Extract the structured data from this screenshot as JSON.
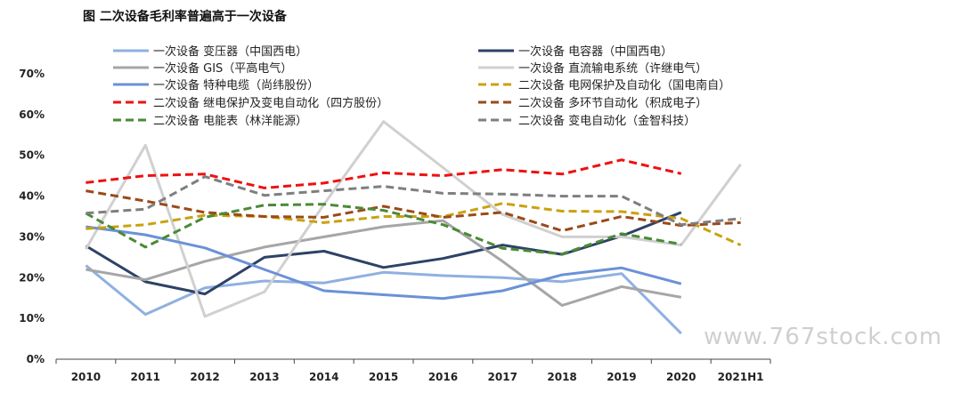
{
  "chart_data": {
    "type": "line",
    "title": "图  二次设备毛利率普遍高于一次设备",
    "x": [
      "2010",
      "2011",
      "2012",
      "2013",
      "2014",
      "2015",
      "2016",
      "2017",
      "2018",
      "2019",
      "2020",
      "2021H1"
    ],
    "y_ticks": [
      "0%",
      "10%",
      "20%",
      "30%",
      "40%",
      "50%",
      "60%",
      "70%"
    ],
    "ylim": [
      0,
      70
    ],
    "grid": false,
    "legend_position": "top",
    "watermark": "www.767stock.com",
    "series": [
      {
        "name": "一次设备 变压器（中国西电）",
        "color": "#8fb0e0",
        "dash": false,
        "values": [
          23,
          11,
          17.5,
          19.2,
          18.7,
          21.3,
          20.5,
          20,
          19,
          21,
          6.3,
          null
        ]
      },
      {
        "name": "一次设备 电容器（中国西电）",
        "color": "#2d4266",
        "dash": false,
        "values": [
          27.8,
          19,
          16,
          25,
          26.5,
          22.5,
          24.7,
          28,
          25.7,
          30.2,
          36,
          null
        ]
      },
      {
        "name": "一次设备 GIS（平高电气）",
        "color": "#a6a6a6",
        "dash": false,
        "values": [
          22,
          19.5,
          24,
          27.5,
          30,
          32.5,
          34,
          24,
          13.2,
          17.8,
          15.2,
          null
        ]
      },
      {
        "name": "一次设备 直流输电系统（许继电气）",
        "color": "#d0d0d0",
        "dash": false,
        "values": [
          27,
          52.5,
          10.5,
          16.5,
          38,
          58.3,
          47,
          35.5,
          30,
          30,
          28,
          47.8
        ]
      },
      {
        "name": "一次设备 特种电缆（尚纬股份）",
        "color": "#6b91d8",
        "dash": false,
        "values": [
          32.5,
          30.5,
          27.3,
          22,
          16.8,
          15.8,
          14.9,
          16.8,
          20.7,
          22.4,
          18.5,
          null
        ]
      },
      {
        "name": "二次设备 电网保护及自动化（国电南自）",
        "color": "#c9a211",
        "dash": true,
        "values": [
          32,
          33,
          35.3,
          35,
          33.5,
          35,
          35,
          38.2,
          36.3,
          36.2,
          34.5,
          28
        ]
      },
      {
        "name": "二次设备 继电保护及变电自动化（四方股份）",
        "color": "#ee1111",
        "dash": true,
        "values": [
          43.3,
          45,
          45.4,
          42,
          43.2,
          45.7,
          45,
          46.5,
          45.4,
          48.9,
          45.5,
          null
        ]
      },
      {
        "name": "二次设备 多环节自动化（积成电子）",
        "color": "#9a4a1a",
        "dash": true,
        "values": [
          41.3,
          38.8,
          36,
          35,
          34.8,
          37.5,
          34.8,
          36,
          31.5,
          35,
          32.8,
          33.5
        ]
      },
      {
        "name": "二次设备 电能表（林洋能源）",
        "color": "#4a8a36",
        "dash": true,
        "values": [
          35.8,
          27.5,
          34.8,
          37.8,
          38,
          36.5,
          33,
          27.2,
          25.8,
          30.8,
          28.2,
          null
        ]
      },
      {
        "name": "二次设备 变电自动化（金智科技）",
        "color": "#7f7f7f",
        "dash": true,
        "values": [
          35.8,
          36.8,
          44.8,
          40.2,
          41.3,
          42.4,
          40.7,
          40.5,
          40,
          40,
          33,
          34.5
        ]
      }
    ]
  }
}
